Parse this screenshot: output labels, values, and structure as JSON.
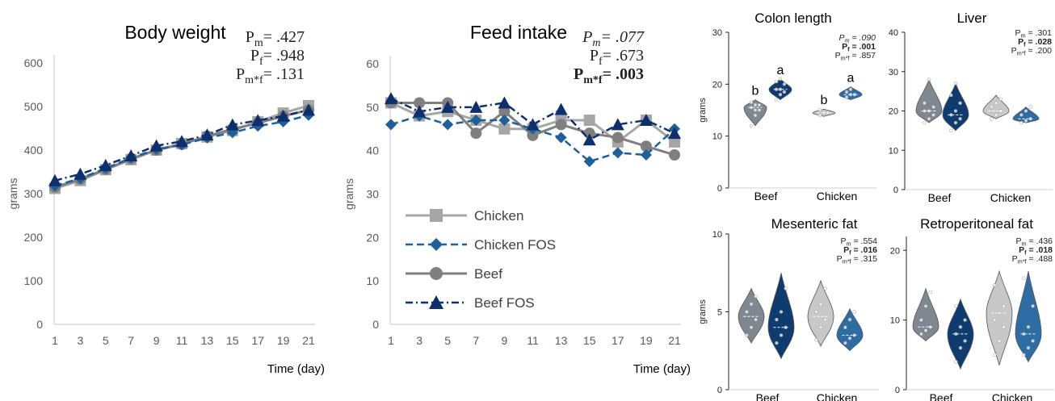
{
  "colors": {
    "chicken": "#a6a6a6",
    "chicken_fos": "#1f5f9a",
    "beef": "#7f7f7f",
    "beef_fos": "#0d2f6e",
    "axis": "#d9d9d9",
    "violin_beef": "#7f8890",
    "violin_beef_fos": "#0f3c6e",
    "violin_chicken": "#c8c8c8",
    "violin_chicken_fos": "#2e6da4"
  },
  "legend": [
    {
      "name": "Chicken",
      "marker": "square",
      "dash": "solid",
      "color_key": "chicken"
    },
    {
      "name": "Chicken FOS",
      "marker": "diamond",
      "dash": "dashed",
      "color_key": "chicken_fos"
    },
    {
      "name": "Beef",
      "marker": "circle",
      "dash": "solid",
      "color_key": "beef"
    },
    {
      "name": "Beef FOS",
      "marker": "triangle",
      "dash": "dashdot",
      "color_key": "beef_fos"
    }
  ],
  "chart_data": [
    {
      "id": "body-weight",
      "type": "line",
      "title": "Body weight",
      "xlabel": "Time (day)",
      "ylabel": "grams",
      "ylim": [
        0,
        600
      ],
      "yticks": [
        0,
        100,
        200,
        300,
        400,
        500,
        600
      ],
      "x": [
        1,
        3,
        5,
        7,
        9,
        11,
        13,
        15,
        17,
        19,
        21
      ],
      "stats": [
        {
          "label": "P",
          "sub": "m",
          "value": "= .427",
          "bold": false
        },
        {
          "label": "P",
          "sub": "f",
          "value": "= .948",
          "bold": false
        },
        {
          "label": "P",
          "sub": "m*f",
          "value": "= .131",
          "bold": false
        }
      ],
      "series": [
        {
          "name": "Chicken",
          "values": [
            312,
            330,
            355,
            378,
            400,
            415,
            430,
            445,
            465,
            485,
            502
          ]
        },
        {
          "name": "Chicken FOS",
          "values": [
            318,
            335,
            358,
            382,
            402,
            412,
            428,
            440,
            455,
            465,
            480
          ]
        },
        {
          "name": "Beef",
          "values": [
            315,
            333,
            356,
            380,
            400,
            413,
            432,
            448,
            462,
            478,
            492
          ]
        },
        {
          "name": "Beef FOS",
          "values": [
            330,
            345,
            365,
            387,
            410,
            420,
            435,
            458,
            468,
            478,
            492
          ]
        }
      ]
    },
    {
      "id": "feed-intake",
      "type": "line",
      "title": "Feed intake",
      "xlabel": "Time (day)",
      "ylabel": "grams",
      "ylim": [
        0,
        60
      ],
      "yticks": [
        0,
        10,
        20,
        30,
        40,
        50,
        60
      ],
      "x": [
        1,
        3,
        5,
        7,
        9,
        11,
        13,
        15,
        17,
        19,
        21
      ],
      "stats": [
        {
          "label": "P",
          "sub": "m",
          "value": "= .077",
          "bold": false,
          "italic": true
        },
        {
          "label": "P",
          "sub": "f",
          "value": "= .673",
          "bold": false
        },
        {
          "label": "P",
          "sub": "m*f",
          "value": "= .003",
          "bold": true
        }
      ],
      "series": [
        {
          "name": "Chicken",
          "values": [
            51,
            48,
            49,
            47,
            45,
            45,
            47,
            47,
            42,
            47,
            42
          ]
        },
        {
          "name": "Chicken FOS",
          "values": [
            46,
            48,
            46,
            47,
            47,
            45,
            43,
            37.5,
            39.5,
            39,
            45
          ]
        },
        {
          "name": "Beef",
          "values": [
            51,
            51,
            51,
            44,
            49,
            43.5,
            46,
            44,
            43,
            41,
            39
          ]
        },
        {
          "name": "Beef FOS",
          "values": [
            52,
            49,
            50,
            50,
            51,
            46,
            49.5,
            42.5,
            46,
            47,
            44
          ]
        }
      ]
    },
    {
      "id": "colon-length",
      "type": "violin",
      "title": "Colon length",
      "ylabel": "grams",
      "ylim": [
        0,
        30
      ],
      "yticks": [
        0,
        10,
        20,
        30
      ],
      "categories": [
        "Beef",
        "Chicken"
      ],
      "stats": [
        {
          "label": "P",
          "sub": "m",
          "value": " = .090",
          "bold": false,
          "italic": true
        },
        {
          "label": "P",
          "sub": "f",
          "value": " = .001",
          "bold": true
        },
        {
          "label": "P",
          "sub": "m*f",
          "value": " = .857",
          "bold": false
        }
      ],
      "letters": [
        "b",
        "a",
        "b",
        "a"
      ],
      "groups": [
        {
          "series": "Beef",
          "min": 12,
          "max": 17,
          "median": 15.5,
          "points": [
            12,
            14,
            15,
            15.5,
            16,
            16,
            16.5,
            15
          ]
        },
        {
          "series": "Beef FOS",
          "min": 17,
          "max": 21,
          "median": 19,
          "points": [
            17,
            18,
            18.5,
            19,
            19,
            20,
            20.5,
            21
          ]
        },
        {
          "series": "Chicken",
          "min": 13.8,
          "max": 15.2,
          "median": 14.5,
          "points": [
            14,
            14.5,
            14.5,
            15
          ]
        },
        {
          "series": "Chicken FOS",
          "min": 17,
          "max": 19.5,
          "median": 18,
          "points": [
            17.5,
            18,
            18,
            18.5,
            19
          ]
        }
      ]
    },
    {
      "id": "liver",
      "type": "violin",
      "title": "Liver",
      "ylim": [
        0,
        40
      ],
      "yticks": [
        0,
        10,
        20,
        30,
        40
      ],
      "categories": [
        "Beef",
        "Chicken"
      ],
      "stats": [
        {
          "label": "P",
          "sub": "m",
          "value": " = .301",
          "bold": false
        },
        {
          "label": "P",
          "sub": "f",
          "value": " = .028",
          "bold": true
        },
        {
          "label": "P",
          "sub": "m*f",
          "value": " = .200",
          "bold": false
        }
      ],
      "groups": [
        {
          "series": "Beef",
          "min": 17,
          "max": 28,
          "median": 20,
          "points": [
            17,
            18,
            19,
            20,
            20,
            21,
            22,
            28
          ]
        },
        {
          "series": "Beef FOS",
          "min": 15,
          "max": 27,
          "median": 19,
          "points": [
            15,
            17,
            18,
            19,
            20,
            22,
            24,
            27
          ]
        },
        {
          "series": "Chicken",
          "min": 18,
          "max": 24,
          "median": 20,
          "points": [
            18,
            19,
            20,
            21,
            22,
            23
          ]
        },
        {
          "series": "Chicken FOS",
          "min": 17,
          "max": 21,
          "median": 18,
          "points": [
            17,
            17.5,
            18,
            19,
            20,
            21
          ]
        }
      ]
    },
    {
      "id": "mesenteric-fat",
      "type": "violin",
      "title": "Mesenteric fat",
      "ylabel": "grams",
      "ylim": [
        0,
        10
      ],
      "yticks": [
        0,
        5,
        10
      ],
      "categories": [
        "Beef",
        "Chicken"
      ],
      "stats": [
        {
          "label": "P",
          "sub": "m",
          "value": " = .554",
          "bold": false
        },
        {
          "label": "P",
          "sub": "f",
          "value": " = .016",
          "bold": true
        },
        {
          "label": "P",
          "sub": "m*f",
          "value": " = .315",
          "bold": false
        }
      ],
      "groups": [
        {
          "series": "Beef",
          "min": 3,
          "max": 6.5,
          "median": 4.7,
          "points": [
            3.5,
            4,
            4.5,
            5,
            5.5,
            6
          ]
        },
        {
          "series": "Beef FOS",
          "min": 2,
          "max": 7.5,
          "median": 4,
          "points": [
            3,
            3.5,
            4,
            4.5,
            5,
            6.5
          ]
        },
        {
          "series": "Chicken",
          "min": 2.8,
          "max": 7,
          "median": 4.7,
          "points": [
            3.2,
            4,
            4.5,
            5,
            5.5,
            6.5
          ]
        },
        {
          "series": "Chicken FOS",
          "min": 2.5,
          "max": 5.2,
          "median": 3.5,
          "points": [
            3,
            3.3,
            3.5,
            4,
            4.5,
            5
          ]
        }
      ]
    },
    {
      "id": "retroperitoneal-fat",
      "type": "violin",
      "title": "Retroperitoneal fat",
      "ylim": [
        0,
        22
      ],
      "yticks": [
        0,
        10,
        20
      ],
      "categories": [
        "Beef",
        "Chicken"
      ],
      "stats": [
        {
          "label": "P",
          "sub": "m",
          "value": " = .436",
          "bold": false
        },
        {
          "label": "P",
          "sub": "f",
          "value": " = .018",
          "bold": true
        },
        {
          "label": "P",
          "sub": "m*f",
          "value": " = .488",
          "bold": false
        }
      ],
      "groups": [
        {
          "series": "Beef",
          "min": 7,
          "max": 14.5,
          "median": 9,
          "points": [
            8,
            8.5,
            9,
            10,
            12,
            14
          ]
        },
        {
          "series": "Beef FOS",
          "min": 3,
          "max": 13,
          "median": 8,
          "points": [
            4,
            6,
            7,
            8,
            9,
            10,
            12
          ]
        },
        {
          "series": "Chicken",
          "min": 3.5,
          "max": 17,
          "median": 11,
          "points": [
            5,
            7,
            9,
            10,
            11,
            12,
            15
          ]
        },
        {
          "series": "Chicken FOS",
          "min": 4,
          "max": 17,
          "median": 8,
          "points": [
            5,
            6,
            7,
            8,
            9,
            12,
            16
          ]
        }
      ]
    }
  ]
}
